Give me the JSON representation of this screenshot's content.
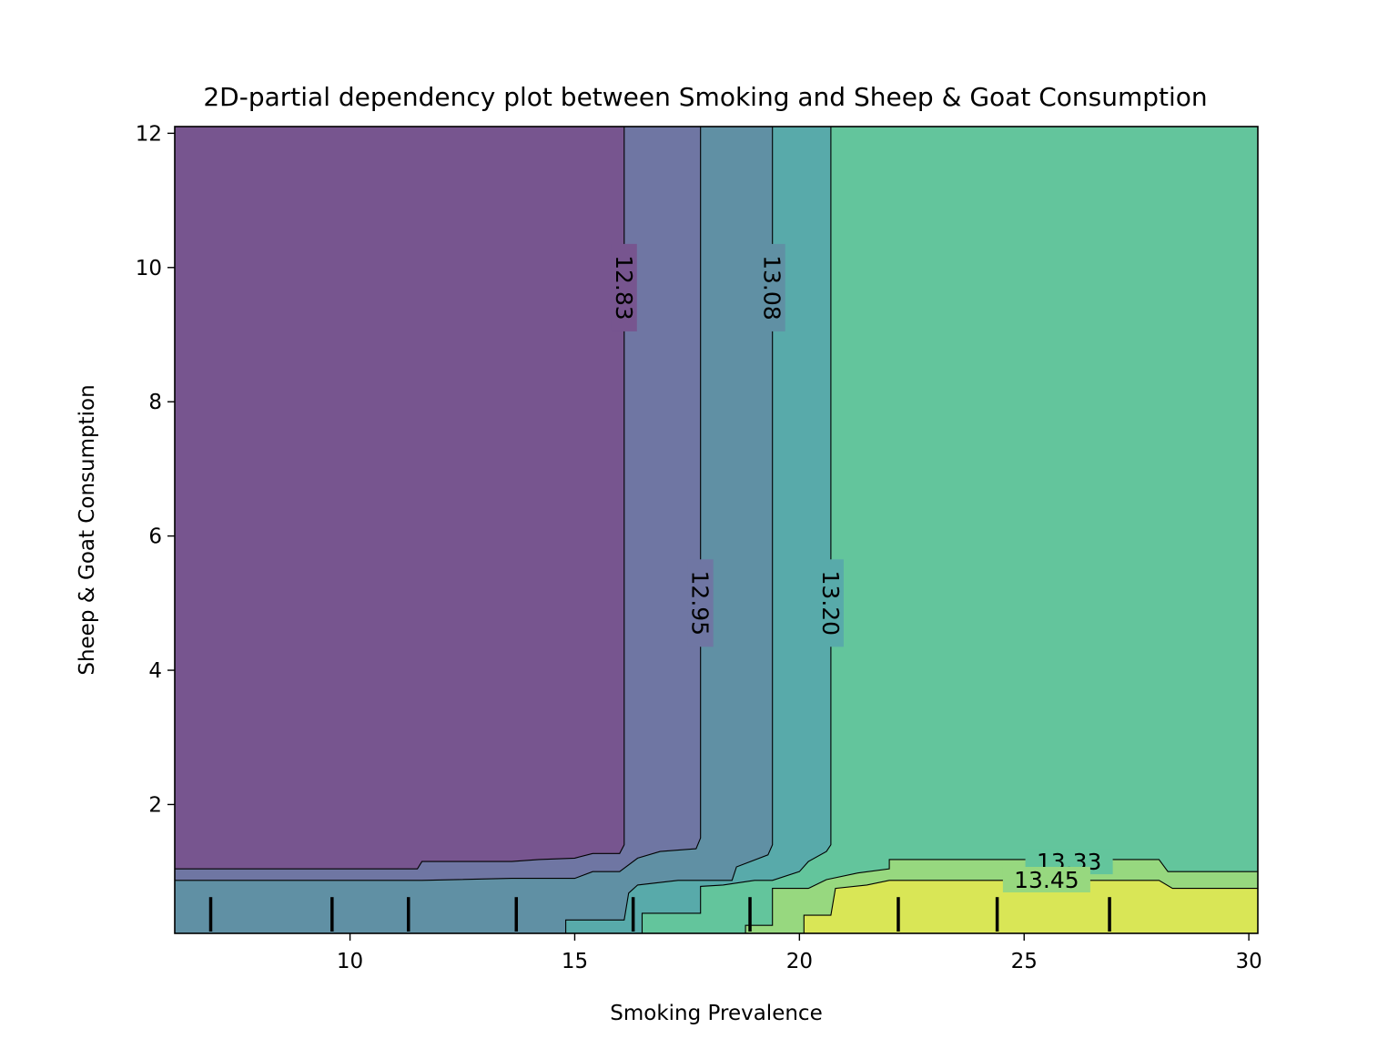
{
  "chart_data": {
    "type": "contour",
    "title": "2D-partial dependency plot between Smoking and Sheep & Goat Consumption",
    "xlabel": "Smoking Prevalence",
    "ylabel": "Sheep & Goat Consumption",
    "xlim": [
      6.1,
      30.2
    ],
    "ylim": [
      0.08,
      12.1
    ],
    "xticks": [
      10,
      15,
      20,
      25,
      30
    ],
    "yticks": [
      2,
      4,
      6,
      8,
      10,
      12
    ],
    "colormap": "viridis",
    "levels": [
      12.83,
      12.95,
      13.08,
      13.2,
      13.33,
      13.45
    ],
    "level_label_positions": [
      {
        "label": "12.83",
        "x": 16.1,
        "y": 9.7,
        "rotation": 90
      },
      {
        "label": "13.08",
        "x": 19.4,
        "y": 9.7,
        "rotation": 90
      },
      {
        "label": "12.95",
        "x": 17.8,
        "y": 5.0,
        "rotation": 90
      },
      {
        "label": "13.20",
        "x": 20.7,
        "y": 5.0,
        "rotation": 90
      },
      {
        "label": "13.33",
        "x": 26.0,
        "y": 1.15,
        "rotation": 0
      },
      {
        "label": "13.45",
        "x": 25.5,
        "y": 0.88,
        "rotation": 0
      }
    ],
    "band_colors": [
      "#77558f",
      "#6f76a3",
      "#6090a4",
      "#58aaaa",
      "#63c59c",
      "#97d87f",
      "#d9e656"
    ],
    "band_fill_opacity": 1,
    "boundaries": [
      [
        [
          6.1,
          1.04
        ],
        [
          11.5,
          1.04
        ],
        [
          11.6,
          1.15
        ],
        [
          13.6,
          1.15
        ],
        [
          14.2,
          1.18
        ],
        [
          15.0,
          1.2
        ],
        [
          15.4,
          1.27
        ],
        [
          16.0,
          1.27
        ],
        [
          16.1,
          1.4
        ],
        [
          16.1,
          12.1
        ]
      ],
      [
        [
          6.1,
          0.87
        ],
        [
          11.5,
          0.87
        ],
        [
          11.6,
          0.87
        ],
        [
          13.6,
          0.9
        ],
        [
          15.0,
          0.9
        ],
        [
          15.4,
          1.0
        ],
        [
          16.0,
          1.0
        ],
        [
          16.4,
          1.2
        ],
        [
          16.9,
          1.3
        ],
        [
          17.7,
          1.34
        ],
        [
          17.8,
          1.5
        ],
        [
          17.8,
          12.1
        ]
      ],
      [
        [
          14.8,
          0.08
        ],
        [
          14.8,
          0.28
        ],
        [
          16.1,
          0.28
        ],
        [
          16.2,
          0.68
        ],
        [
          16.4,
          0.8
        ],
        [
          17.3,
          0.87
        ],
        [
          18.5,
          0.87
        ],
        [
          18.6,
          1.07
        ],
        [
          19.3,
          1.25
        ],
        [
          19.4,
          1.4
        ],
        [
          19.4,
          12.1
        ]
      ],
      [
        [
          16.5,
          0.08
        ],
        [
          16.5,
          0.38
        ],
        [
          17.8,
          0.38
        ],
        [
          17.8,
          0.78
        ],
        [
          18.3,
          0.8
        ],
        [
          19.0,
          0.87
        ],
        [
          19.4,
          0.87
        ],
        [
          20.0,
          1.0
        ],
        [
          20.2,
          1.15
        ],
        [
          20.6,
          1.3
        ],
        [
          20.7,
          1.4
        ],
        [
          20.7,
          12.1
        ]
      ],
      [
        [
          18.8,
          0.08
        ],
        [
          18.8,
          0.2
        ],
        [
          19.4,
          0.2
        ],
        [
          19.4,
          0.75
        ],
        [
          20.2,
          0.75
        ],
        [
          20.6,
          0.88
        ],
        [
          21.3,
          0.98
        ],
        [
          22.0,
          1.04
        ],
        [
          22.0,
          1.18
        ],
        [
          28.0,
          1.18
        ],
        [
          28.2,
          1.0
        ],
        [
          30.2,
          1.0
        ]
      ],
      [
        [
          20.1,
          0.08
        ],
        [
          20.1,
          0.35
        ],
        [
          20.7,
          0.35
        ],
        [
          20.8,
          0.75
        ],
        [
          21.5,
          0.8
        ],
        [
          22.0,
          0.87
        ],
        [
          28.0,
          0.87
        ],
        [
          28.3,
          0.75
        ],
        [
          30.2,
          0.75
        ]
      ]
    ],
    "rug_x": [
      6.9,
      9.6,
      11.3,
      13.7,
      16.3,
      18.9,
      22.2,
      24.4,
      26.9
    ],
    "rug_y_range": [
      0.08,
      0.62
    ],
    "grid": false
  }
}
